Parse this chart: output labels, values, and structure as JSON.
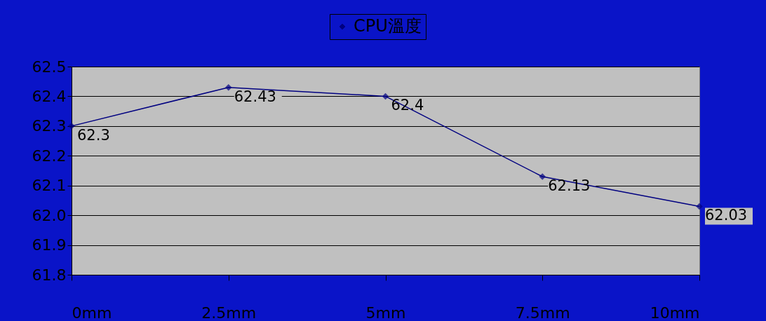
{
  "chart_data": {
    "type": "line",
    "categories": [
      "0mm",
      "2.5mm",
      "5mm",
      "7.5mm",
      "10mm"
    ],
    "series": [
      {
        "name": "CPU溫度",
        "color": "#000080",
        "values": [
          62.3,
          62.43,
          62.4,
          62.13,
          62.03
        ]
      }
    ],
    "ylim": [
      61.8,
      62.5
    ],
    "yticks": [
      61.8,
      61.9,
      {
        "value": 62.0,
        "label": "62.0"
      },
      62.1,
      62.2,
      62.3,
      62.4,
      62.5
    ],
    "grid": "y",
    "legend": "top",
    "marker": "diamond",
    "line_style": "solid",
    "data_labels": true
  }
}
